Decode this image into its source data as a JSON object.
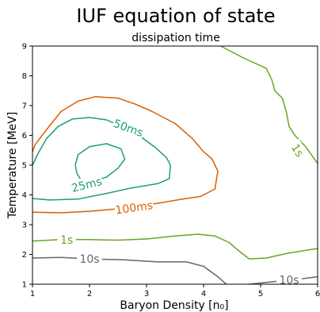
{
  "chart_data": {
    "type": "line",
    "subtype": "contour",
    "title": "IUF equation of state",
    "subtitle": "dissipation time",
    "xlabel": "Baryon Density [n₀]",
    "ylabel": "Temperature [MeV]",
    "xlim": [
      1,
      6
    ],
    "ylim": [
      1,
      9
    ],
    "xticks": [
      "1",
      "2",
      "3",
      "4",
      "5",
      "6"
    ],
    "yticks": [
      "1",
      "2",
      "3",
      "4",
      "5",
      "6",
      "7",
      "8",
      "9"
    ],
    "grid": false,
    "series": [
      {
        "name": "25ms",
        "color": "#1b9e77",
        "label": {
          "x": 1.95,
          "y": 4.35,
          "angle": -14
        },
        "points": [
          [
            1.75,
            5.0
          ],
          [
            1.8,
            5.35
          ],
          [
            2.0,
            5.62
          ],
          [
            2.3,
            5.72
          ],
          [
            2.55,
            5.55
          ],
          [
            2.62,
            5.2
          ],
          [
            2.5,
            4.9
          ],
          [
            2.3,
            4.6
          ],
          [
            2.0,
            4.42
          ],
          [
            1.85,
            4.5
          ],
          [
            1.78,
            4.72
          ],
          [
            1.75,
            5.0
          ]
        ]
      },
      {
        "name": "50ms",
        "color": "#1b9e77",
        "label": {
          "x": 2.68,
          "y": 6.25,
          "angle": 20
        },
        "points": [
          [
            1.0,
            3.88
          ],
          [
            1.3,
            3.83
          ],
          [
            1.8,
            3.86
          ],
          [
            2.3,
            4.05
          ],
          [
            2.7,
            4.22
          ],
          [
            3.2,
            4.38
          ],
          [
            3.4,
            4.55
          ],
          [
            3.42,
            5.0
          ],
          [
            3.35,
            5.25
          ],
          [
            3.15,
            5.6
          ],
          [
            2.9,
            5.95
          ],
          [
            2.5,
            6.35
          ],
          [
            2.3,
            6.52
          ],
          [
            2.0,
            6.6
          ],
          [
            1.7,
            6.55
          ],
          [
            1.45,
            6.3
          ],
          [
            1.25,
            5.9
          ],
          [
            1.1,
            5.4
          ],
          [
            1.0,
            5.0
          ]
        ]
      },
      {
        "name": "100ms",
        "color": "#d95f02",
        "label": {
          "x": 2.78,
          "y": 3.58,
          "angle": -8
        },
        "points": [
          [
            1.0,
            3.42
          ],
          [
            1.5,
            3.4
          ],
          [
            2.0,
            3.45
          ],
          [
            2.6,
            3.55
          ],
          [
            3.2,
            3.72
          ],
          [
            3.6,
            3.85
          ],
          [
            3.95,
            3.95
          ],
          [
            4.2,
            4.2
          ],
          [
            4.25,
            4.8
          ],
          [
            4.15,
            5.2
          ],
          [
            4.0,
            5.45
          ],
          [
            3.8,
            5.9
          ],
          [
            3.5,
            6.4
          ],
          [
            3.1,
            6.8
          ],
          [
            2.8,
            7.05
          ],
          [
            2.5,
            7.25
          ],
          [
            2.1,
            7.3
          ],
          [
            1.8,
            7.15
          ],
          [
            1.5,
            6.8
          ],
          [
            1.25,
            6.2
          ],
          [
            1.05,
            5.7
          ],
          [
            1.0,
            5.45
          ]
        ]
      },
      {
        "name": "1s",
        "color": "#66a61e",
        "label": {
          "x": 1.6,
          "y": 2.5,
          "angle": 0
        },
        "points": [
          [
            1.0,
            2.45
          ],
          [
            1.5,
            2.5
          ],
          [
            2.0,
            2.5
          ],
          [
            2.5,
            2.48
          ],
          [
            3.0,
            2.52
          ],
          [
            3.5,
            2.62
          ],
          [
            3.9,
            2.68
          ],
          [
            4.2,
            2.62
          ],
          [
            4.45,
            2.4
          ],
          [
            4.6,
            2.15
          ],
          [
            4.8,
            1.85
          ],
          [
            5.1,
            1.88
          ],
          [
            5.5,
            2.05
          ],
          [
            6.0,
            2.2
          ]
        ]
      },
      {
        "name": "1s",
        "color": "#66a61e",
        "label": {
          "x": 5.65,
          "y": 5.5,
          "angle": 58
        },
        "points": [
          [
            4.3,
            9.0
          ],
          [
            4.7,
            8.6
          ],
          [
            5.1,
            8.25
          ],
          [
            5.2,
            7.85
          ],
          [
            5.25,
            7.5
          ],
          [
            5.38,
            7.25
          ],
          [
            5.45,
            6.8
          ],
          [
            5.5,
            6.3
          ],
          [
            5.6,
            6.0
          ],
          [
            5.8,
            5.6
          ],
          [
            6.0,
            5.05
          ]
        ]
      },
      {
        "name": "10s",
        "color": "#666666",
        "label": {
          "x": 2.0,
          "y": 1.85,
          "angle": 0
        },
        "points": [
          [
            1.0,
            1.88
          ],
          [
            1.5,
            1.9
          ],
          [
            2.0,
            1.85
          ],
          [
            2.6,
            1.82
          ],
          [
            3.2,
            1.75
          ],
          [
            3.7,
            1.75
          ],
          [
            4.0,
            1.6
          ],
          [
            4.25,
            1.25
          ],
          [
            4.4,
            1.0
          ]
        ]
      },
      {
        "name": "10s",
        "color": "#666666",
        "label": {
          "x": 5.5,
          "y": 1.15,
          "angle": 0
        },
        "points": [
          [
            4.8,
            1.0
          ],
          [
            5.2,
            1.08
          ],
          [
            5.7,
            1.18
          ],
          [
            6.0,
            1.25
          ]
        ]
      }
    ]
  }
}
